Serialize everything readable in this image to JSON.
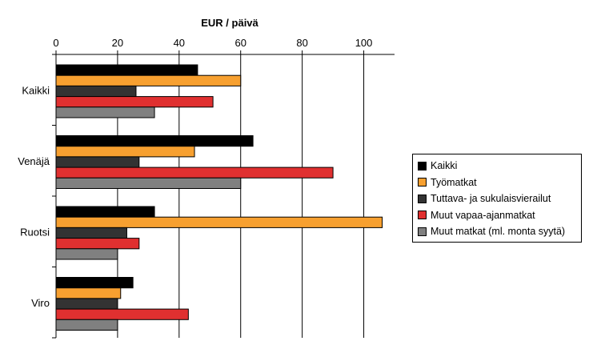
{
  "chart_data": {
    "type": "bar",
    "orientation": "horizontal",
    "title": "EUR / päivä",
    "xlabel": "",
    "ylabel": "",
    "xlim": [
      0,
      110
    ],
    "xticks": [
      0,
      20,
      40,
      60,
      80,
      100
    ],
    "grid": true,
    "legend_position": "right",
    "categories": [
      "Kaikki",
      "Venäjä",
      "Ruotsi",
      "Viro"
    ],
    "series": [
      {
        "name": "Kaikki",
        "color": "#000000",
        "values": [
          46,
          64,
          32,
          25
        ]
      },
      {
        "name": "Työmatkat",
        "color": "#F7A030",
        "values": [
          60,
          45,
          106,
          21
        ]
      },
      {
        "name": "Tuttava- ja sukulaisvierailut",
        "color": "#333333",
        "values": [
          26,
          27,
          23,
          20
        ]
      },
      {
        "name": "Muut vapaa-ajanmatkat",
        "color": "#E03030",
        "values": [
          51,
          90,
          27,
          43
        ]
      },
      {
        "name": "Muut matkat (ml. monta syytä)",
        "color": "#808080",
        "values": [
          32,
          60,
          20,
          20
        ]
      }
    ]
  }
}
